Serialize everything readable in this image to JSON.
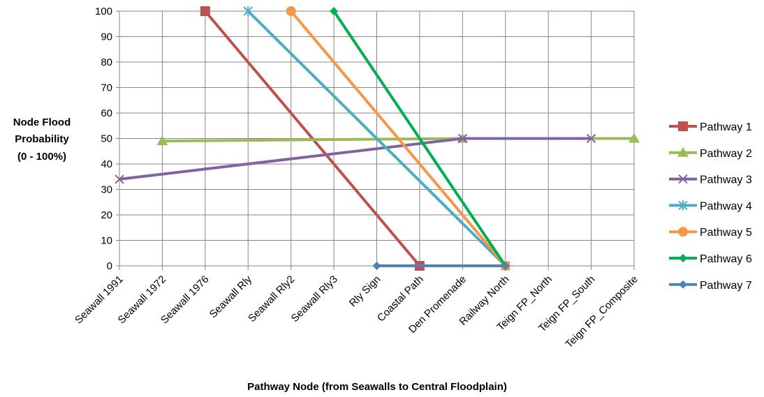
{
  "chart_data": {
    "type": "line",
    "ylabel_lines": [
      "Node Flood",
      "Probability",
      "(0 - 100%)"
    ],
    "xlabel": "Pathway Node (from Seawalls to Central Floodplain)",
    "ylim": [
      0,
      100
    ],
    "ytick_step": 10,
    "grid": true,
    "legend_position": "right",
    "categories": [
      "Seawall 1991",
      "Seawall 1972",
      "Seawall 1976",
      "Seawall Rly",
      "Seawall Rly2",
      "Seawall Rly3",
      "Rly Sign",
      "Coastal Path",
      "Den Promenade",
      "Railway North",
      "Teign FP_North",
      "Teign FP_South",
      "Teign FP_Composite"
    ],
    "series": [
      {
        "name": "Pathway 1",
        "color": "#C0504D",
        "marker": "square",
        "points": [
          {
            "x": "Seawall 1976",
            "y": 100
          },
          {
            "x": "Coastal Path",
            "y": 0
          }
        ]
      },
      {
        "name": "Pathway 2",
        "color": "#9BBB59",
        "marker": "triangle",
        "points": [
          {
            "x": "Seawall 1972",
            "y": 49
          },
          {
            "x": "Den Promenade",
            "y": 50
          },
          {
            "x": "Teign FP_Composite",
            "y": 50
          }
        ]
      },
      {
        "name": "Pathway 3",
        "color": "#8064A2",
        "marker": "x",
        "points": [
          {
            "x": "Seawall 1991",
            "y": 34
          },
          {
            "x": "Den Promenade",
            "y": 50
          },
          {
            "x": "Teign FP_South",
            "y": 50
          }
        ]
      },
      {
        "name": "Pathway 4",
        "color": "#4BACC6",
        "marker": "star",
        "points": [
          {
            "x": "Seawall Rly",
            "y": 100
          },
          {
            "x": "Railway North",
            "y": 0
          }
        ]
      },
      {
        "name": "Pathway 5",
        "color": "#F79646",
        "marker": "circle",
        "points": [
          {
            "x": "Seawall Rly2",
            "y": 100
          },
          {
            "x": "Railway North",
            "y": 0
          }
        ]
      },
      {
        "name": "Pathway 6",
        "color": "#00B050",
        "marker": "diamond",
        "points": [
          {
            "x": "Seawall Rly3",
            "y": 100
          },
          {
            "x": "Railway North",
            "y": 0
          }
        ]
      },
      {
        "name": "Pathway 7",
        "color": "#4F81BD",
        "marker": "diamond",
        "points": [
          {
            "x": "Rly Sign",
            "y": 0
          },
          {
            "x": "Railway North",
            "y": 0
          }
        ]
      }
    ]
  }
}
